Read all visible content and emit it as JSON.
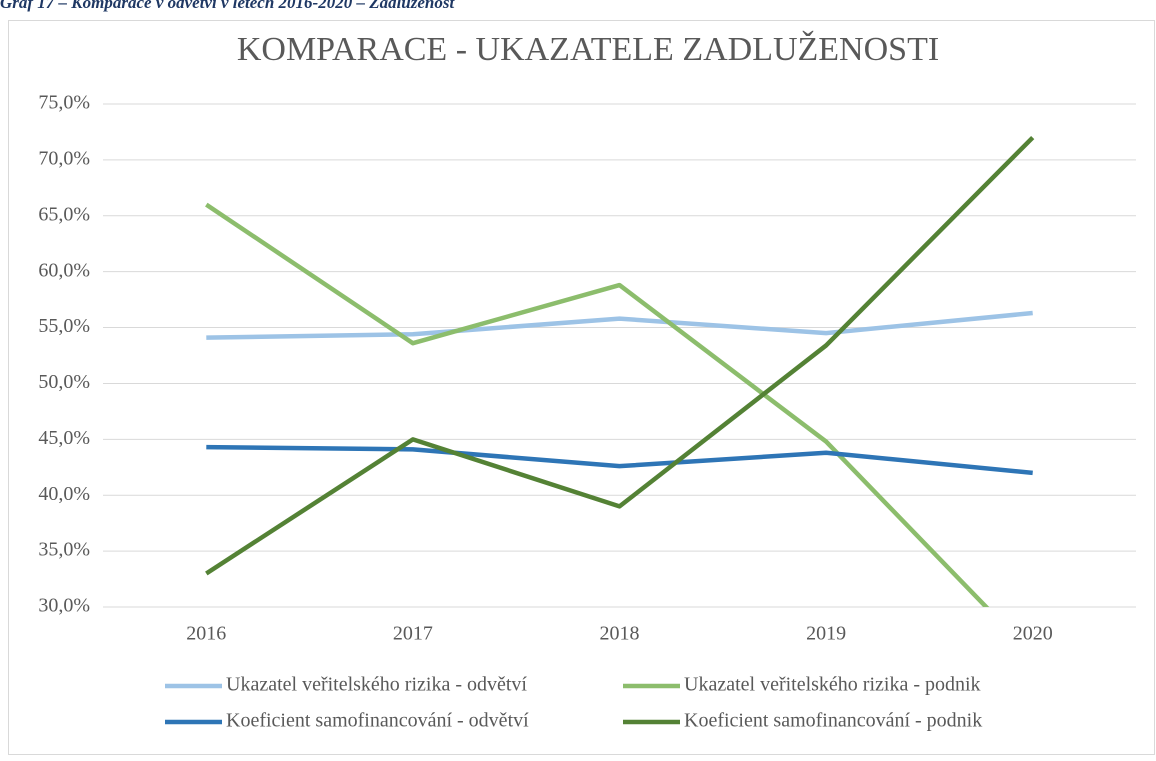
{
  "caption": "Graf 17 – Komparace v odvětví v letech 2016-2020 – Zadluženost",
  "chart_data": {
    "type": "line",
    "title": "KOMPARACE - UKAZATELE ZADLUŽENOSTI",
    "categories": [
      "2016",
      "2017",
      "2018",
      "2019",
      "2020"
    ],
    "series": [
      {
        "name": "Ukazatel veřitelského rizika - odvětví",
        "color": "#9dc3e6",
        "values": [
          54.1,
          54.4,
          55.8,
          54.5,
          56.3
        ]
      },
      {
        "name": "Ukazatel veřitelského rizika - podnik",
        "color": "#8cbd6c",
        "values": [
          66.0,
          53.6,
          58.8,
          44.8,
          25.7
        ]
      },
      {
        "name": "Koeficient samofinancování - odvětví",
        "color": "#2e75b6",
        "values": [
          44.3,
          44.1,
          42.6,
          43.8,
          42.0
        ]
      },
      {
        "name": "Koeficient samofinancování - podnik",
        "color": "#548235",
        "values": [
          33.0,
          45.0,
          39.0,
          53.4,
          72.0
        ]
      }
    ],
    "ylim": [
      30,
      75
    ],
    "yticks": [
      {
        "value": 30,
        "label": "30,0%"
      },
      {
        "value": 35,
        "label": "35,0%"
      },
      {
        "value": 40,
        "label": "40,0%"
      },
      {
        "value": 45,
        "label": "45,0%"
      },
      {
        "value": 50,
        "label": "50,0%"
      },
      {
        "value": 55,
        "label": "55,0%"
      },
      {
        "value": 60,
        "label": "60,0%"
      },
      {
        "value": 65,
        "label": "65,0%"
      },
      {
        "value": 70,
        "label": "70,0%"
      },
      {
        "value": 75,
        "label": "75,0%"
      }
    ],
    "grid": true,
    "legend": "bottom"
  }
}
